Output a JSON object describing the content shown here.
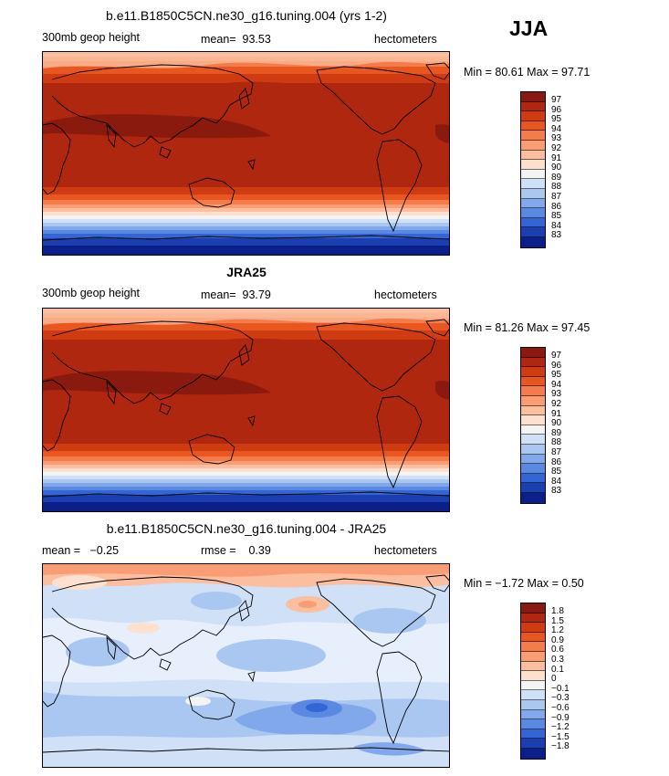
{
  "season": "JJA",
  "panels": [
    {
      "title": "b.e11.B1850C5CN.ne30_g16.tuning.004 (yrs 1-2)",
      "left_label": "300mb geop height",
      "mid_label": "mean=  93.53",
      "right_label": "hectometers",
      "min_label": "Min =",
      "min_value": "80.61",
      "max_label": "Max =",
      "max_value": "97.71",
      "colorbar": {
        "labels": [
          "97",
          "96",
          "95",
          "94",
          "93",
          "92",
          "91",
          "90",
          "89",
          "88",
          "87",
          "86",
          "85",
          "84",
          "83"
        ],
        "colors": [
          "#8b1a0e",
          "#b0270f",
          "#d03c12",
          "#e8571f",
          "#f47c4a",
          "#f89d74",
          "#fbbfa0",
          "#fde0cf",
          "#f4f4f4",
          "#cfe0f7",
          "#a9c7f1",
          "#81a8ea",
          "#5a89e2",
          "#3366d4",
          "#1a3fb0",
          "#0a1f8a"
        ]
      },
      "map_type": "height"
    },
    {
      "title": "JRA25",
      "left_label": "300mb geop height",
      "mid_label": "mean=  93.79",
      "right_label": "hectometers",
      "min_label": "Min =",
      "min_value": "81.26",
      "max_label": "Max =",
      "max_value": "97.45",
      "colorbar": {
        "labels": [
          "97",
          "96",
          "95",
          "94",
          "93",
          "92",
          "91",
          "90",
          "89",
          "88",
          "87",
          "86",
          "85",
          "84",
          "83"
        ],
        "colors": [
          "#8b1a0e",
          "#b0270f",
          "#d03c12",
          "#e8571f",
          "#f47c4a",
          "#f89d74",
          "#fbbfa0",
          "#fde0cf",
          "#f4f4f4",
          "#cfe0f7",
          "#a9c7f1",
          "#81a8ea",
          "#5a89e2",
          "#3366d4",
          "#1a3fb0",
          "#0a1f8a"
        ]
      },
      "map_type": "height"
    },
    {
      "title": "b.e11.B1850C5CN.ne30_g16.tuning.004 - JRA25",
      "left_label": "mean =   −0.25",
      "mid_label": "rmse =    0.39",
      "right_label": "hectometers",
      "min_label": "Min =",
      "min_value": "−1.72",
      "max_label": "Max =",
      "max_value": "0.50",
      "colorbar": {
        "labels": [
          "1.8",
          "1.5",
          "1.2",
          "0.9",
          "0.6",
          "0.3",
          "0.1",
          "0",
          "−0.1",
          "−0.3",
          "−0.6",
          "−0.9",
          "−1.2",
          "−1.5",
          "−1.8"
        ],
        "colors": [
          "#8b1a0e",
          "#b0270f",
          "#d03c12",
          "#e8571f",
          "#f47c4a",
          "#f89d74",
          "#fbbfa0",
          "#fde0cf",
          "#f4f4f4",
          "#cfe0f7",
          "#a9c7f1",
          "#81a8ea",
          "#5a89e2",
          "#3366d4",
          "#1a3fb0",
          "#0a1f8a"
        ]
      },
      "map_type": "difference"
    }
  ]
}
